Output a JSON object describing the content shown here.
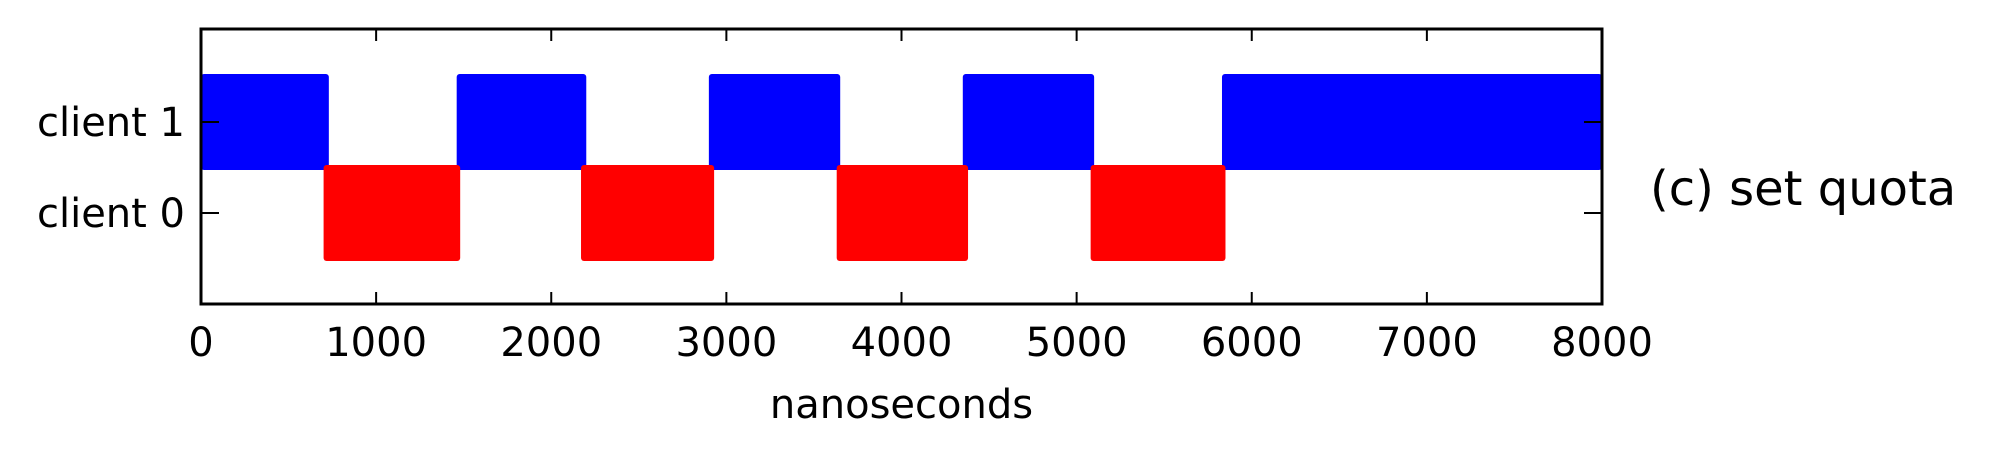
{
  "chart_data": {
    "type": "timeline",
    "title": "",
    "caption": "(c) set quota",
    "xlabel": "nanoseconds",
    "ylabel": "",
    "xlim": [
      0,
      8000
    ],
    "xticks": [
      0,
      1000,
      2000,
      3000,
      4000,
      5000,
      6000,
      7000,
      8000
    ],
    "xtick_labels": [
      "0",
      "1000",
      "2000",
      "3000",
      "4000",
      "5000",
      "6000",
      "7000",
      "8000"
    ],
    "categories": [
      "client 0",
      "client 1"
    ],
    "grid": false,
    "series": [
      {
        "category": "client 1",
        "color": "#0000ff",
        "intervals": [
          [
            0,
            730
          ],
          [
            1460,
            2200
          ],
          [
            2900,
            3650
          ],
          [
            4350,
            5100
          ],
          [
            5830,
            8000
          ]
        ]
      },
      {
        "category": "client 0",
        "color": "#ff0000",
        "intervals": [
          [
            700,
            1480
          ],
          [
            2170,
            2930
          ],
          [
            3630,
            4380
          ],
          [
            5080,
            5850
          ]
        ]
      }
    ]
  }
}
